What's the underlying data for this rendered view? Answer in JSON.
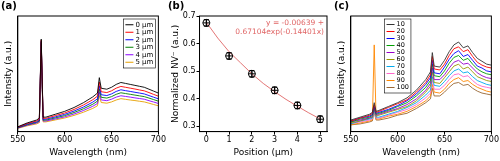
{
  "chart_data": [
    {
      "type": "line",
      "title": "(a)",
      "x_label": "Wavelength (nm)",
      "y_label": "Intensity (a.u.)",
      "x": [
        550,
        560,
        570,
        573,
        575,
        577,
        580,
        590,
        600,
        610,
        620,
        630,
        635,
        637,
        639,
        645,
        650,
        655,
        660,
        665,
        670,
        675,
        680,
        685,
        690,
        695,
        700
      ],
      "series": [
        {
          "name": "0 μm",
          "color": "#000000",
          "values": [
            0.5,
            0.9,
            1.2,
            1.4,
            9.6,
            1.5,
            1.5,
            1.8,
            2.1,
            2.5,
            3.0,
            3.6,
            4.0,
            5.6,
            4.5,
            4.4,
            4.6,
            4.9,
            5.1,
            5.0,
            4.9,
            4.8,
            4.7,
            4.6,
            4.4,
            4.2,
            4.0
          ]
        },
        {
          "name": "1 μm",
          "color": "#ff0000",
          "values": [
            0.46,
            0.83,
            1.1,
            1.29,
            9.5,
            1.38,
            1.38,
            1.66,
            1.93,
            2.3,
            2.76,
            3.31,
            3.68,
            5.15,
            4.14,
            4.05,
            4.23,
            4.51,
            4.69,
            4.6,
            4.51,
            4.42,
            4.32,
            4.23,
            4.05,
            3.86,
            3.68
          ]
        },
        {
          "name": "2 μm",
          "color": "#0000ff",
          "values": [
            0.43,
            0.77,
            1.02,
            1.19,
            9.4,
            1.28,
            1.28,
            1.53,
            1.79,
            2.13,
            2.55,
            3.06,
            3.4,
            4.76,
            3.83,
            3.74,
            3.91,
            4.17,
            4.34,
            4.25,
            4.17,
            4.08,
            4.0,
            3.91,
            3.74,
            3.57,
            3.4
          ]
        },
        {
          "name": "3 μm",
          "color": "#008000",
          "values": [
            0.4,
            0.71,
            0.95,
            1.11,
            9.3,
            1.19,
            1.19,
            1.42,
            1.66,
            1.98,
            2.37,
            2.84,
            3.16,
            4.42,
            3.56,
            3.48,
            3.63,
            3.87,
            4.03,
            3.95,
            3.87,
            3.79,
            3.71,
            3.63,
            3.48,
            3.32,
            3.16
          ]
        },
        {
          "name": "4 μm",
          "color": "#8b00ff",
          "values": [
            0.37,
            0.66,
            0.88,
            1.02,
            9.2,
            1.1,
            1.1,
            1.31,
            1.53,
            1.83,
            2.19,
            2.63,
            2.92,
            4.09,
            3.29,
            3.21,
            3.36,
            3.58,
            3.72,
            3.65,
            3.58,
            3.5,
            3.43,
            3.36,
            3.21,
            3.07,
            2.92
          ]
        },
        {
          "name": "5 μm",
          "color": "#e6a000",
          "values": [
            0.34,
            0.6,
            0.8,
            0.94,
            9.1,
            1.01,
            1.01,
            1.21,
            1.41,
            1.68,
            2.01,
            2.41,
            2.68,
            3.75,
            3.02,
            2.95,
            3.08,
            3.28,
            3.42,
            3.35,
            3.28,
            3.22,
            3.15,
            3.08,
            2.95,
            2.81,
            2.68
          ]
        }
      ],
      "xlim": [
        550,
        700
      ],
      "xticks": [
        550,
        600,
        650,
        700
      ],
      "ylim": [
        0,
        12
      ],
      "tick_labels": "x",
      "grid": false,
      "legend": "upper right"
    },
    {
      "type": "scatter",
      "title": "(b)",
      "x_label": "Position (μm)",
      "y_label": "Normalized NV⁻ (a.u.)",
      "x": [
        0,
        1,
        2,
        3,
        4,
        5
      ],
      "series": [
        {
          "color": "#000000",
          "marker": "circle_plus",
          "values": [
            0.675,
            0.555,
            0.49,
            0.43,
            0.375,
            0.325
          ],
          "errors": [
            0.012,
            0.012,
            0.012,
            0.012,
            0.012,
            0.012
          ]
        },
        {
          "type": "line",
          "color": "#e06666",
          "x": [
            0,
            0.5,
            1,
            1.5,
            2,
            2.5,
            3,
            3.5,
            4,
            4.5,
            5
          ],
          "values": [
            0.677,
            0.62,
            0.57,
            0.53,
            0.49,
            0.455,
            0.425,
            0.397,
            0.372,
            0.348,
            0.326
          ]
        }
      ],
      "annotations": [
        "y = -0.00639 +",
        "0.67104exp(-0.14401x)"
      ],
      "xlim": [
        -0.3,
        5.3
      ],
      "xticks": [
        0,
        1,
        2,
        3,
        4,
        5
      ],
      "ylim": [
        0.28,
        0.7
      ],
      "yticks": [
        0.3,
        0.4,
        0.5,
        0.6,
        0.7
      ],
      "grid": false
    },
    {
      "type": "line",
      "title": "(c)",
      "x_label": "Wavelength (nm)",
      "y_label": "Intensity (a.u.)",
      "x": [
        550,
        560,
        570,
        573,
        575,
        577,
        580,
        590,
        600,
        610,
        620,
        630,
        635,
        637,
        639,
        645,
        650,
        655,
        660,
        665,
        670,
        675,
        680,
        685,
        690,
        695,
        700
      ],
      "series": [
        {
          "name": "10",
          "color": "#333333",
          "values": [
            1.2,
            1.5,
            1.8,
            2.0,
            3.0,
            2.1,
            2.2,
            2.6,
            3.0,
            3.5,
            4.3,
            5.4,
            6.2,
            8.2,
            6.8,
            6.7,
            7.4,
            8.3,
            9.0,
            9.3,
            8.7,
            8.9,
            8.2,
            7.6,
            7.3,
            7.0,
            6.9
          ]
        },
        {
          "name": "20",
          "color": "#ff0000",
          "values": [
            1.1,
            1.4,
            1.7,
            1.9,
            2.8,
            2.0,
            2.1,
            2.5,
            2.9,
            3.3,
            4.1,
            5.1,
            5.9,
            7.8,
            6.5,
            6.4,
            7.0,
            7.9,
            8.6,
            8.8,
            8.3,
            8.5,
            7.8,
            7.2,
            6.9,
            6.7,
            6.6
          ]
        },
        {
          "name": "30",
          "color": "#0000ff",
          "values": [
            1.1,
            1.4,
            1.6,
            1.8,
            2.6,
            1.9,
            2.0,
            2.3,
            2.7,
            3.2,
            3.9,
            4.9,
            5.6,
            7.4,
            6.1,
            6.0,
            6.7,
            7.5,
            8.1,
            8.4,
            7.8,
            8.0,
            7.4,
            6.8,
            6.6,
            6.3,
            6.2
          ]
        },
        {
          "name": "40",
          "color": "#00a000",
          "values": [
            1.0,
            1.3,
            1.5,
            1.7,
            2.5,
            1.8,
            1.9,
            2.2,
            2.6,
            3.0,
            3.7,
            4.6,
            5.3,
            7.0,
            5.8,
            5.7,
            6.3,
            7.1,
            7.7,
            7.9,
            7.4,
            7.6,
            7.0,
            6.5,
            6.2,
            6.0,
            5.9
          ]
        },
        {
          "name": "50",
          "color": "#9900cc",
          "values": [
            1.0,
            1.2,
            1.4,
            1.6,
            2.4,
            1.7,
            1.8,
            2.1,
            2.4,
            2.8,
            3.4,
            4.3,
            5.0,
            6.6,
            5.4,
            5.4,
            5.9,
            6.6,
            7.2,
            7.4,
            7.0,
            7.1,
            6.6,
            6.1,
            5.8,
            5.6,
            5.5
          ]
        },
        {
          "name": "60",
          "color": "#999900",
          "values": [
            0.9,
            1.1,
            1.4,
            1.5,
            2.3,
            1.6,
            1.7,
            2.0,
            2.3,
            2.6,
            3.2,
            4.1,
            4.7,
            6.2,
            5.1,
            5.0,
            5.6,
            6.2,
            6.8,
            7.0,
            6.5,
            6.7,
            6.2,
            5.7,
            5.5,
            5.3,
            5.2
          ]
        },
        {
          "name": "70",
          "color": "#00aaee",
          "values": [
            0.8,
            1.1,
            1.3,
            1.4,
            2.2,
            1.5,
            1.5,
            1.8,
            2.1,
            2.5,
            3.0,
            3.8,
            4.3,
            5.7,
            4.8,
            4.7,
            5.2,
            5.8,
            6.3,
            6.5,
            6.1,
            6.2,
            5.7,
            5.3,
            5.1,
            4.9,
            4.8
          ]
        },
        {
          "name": "80",
          "color": "#ff66cc",
          "values": [
            0.8,
            1.0,
            1.2,
            1.3,
            2.1,
            1.4,
            1.4,
            1.7,
            2.0,
            2.3,
            2.8,
            3.5,
            4.0,
            5.3,
            4.4,
            4.4,
            4.8,
            5.4,
            5.9,
            6.0,
            5.7,
            5.8,
            5.3,
            4.9,
            4.7,
            4.6,
            4.5
          ]
        },
        {
          "name": "90",
          "color": "#ff8800",
          "values": [
            0.7,
            0.9,
            1.1,
            1.2,
            9.0,
            1.3,
            1.3,
            1.6,
            1.8,
            2.1,
            2.6,
            3.2,
            3.7,
            4.9,
            4.1,
            4.0,
            4.4,
            5.0,
            5.4,
            5.6,
            5.2,
            5.3,
            4.9,
            4.6,
            4.4,
            4.2,
            4.1
          ]
        },
        {
          "name": "100",
          "color": "#996633",
          "values": [
            0.7,
            0.8,
            1.0,
            1.1,
            2.0,
            1.2,
            1.2,
            1.4,
            1.7,
            1.9,
            2.4,
            3.0,
            3.4,
            4.5,
            3.7,
            3.7,
            4.1,
            4.6,
            5.0,
            5.1,
            4.8,
            4.9,
            4.5,
            4.2,
            4.0,
            3.9,
            3.8
          ]
        }
      ],
      "xlim": [
        550,
        700
      ],
      "xticks": [
        550,
        600,
        650,
        700
      ],
      "ylim": [
        0,
        12
      ],
      "tick_labels": "x",
      "grid": false,
      "legend": "upper left"
    }
  ]
}
